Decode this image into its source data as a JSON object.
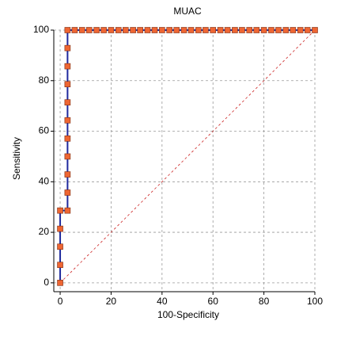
{
  "chart_data": {
    "type": "line",
    "title": "MUAC",
    "x_label": "100-Specificity",
    "y_label": "Sensitivity",
    "series": [
      {
        "name": "MUAC",
        "color": "#1f2a9e",
        "marker_color": "#ee6633",
        "x": [
          0,
          0,
          0,
          0,
          0,
          2.9,
          2.9,
          2.9,
          2.9,
          2.9,
          2.9,
          2.9,
          2.9,
          2.9,
          2.9,
          2.9,
          5.7,
          8.6,
          11.4,
          14.3,
          17.1,
          20,
          22.9,
          25.7,
          28.6,
          31.4,
          34.3,
          37.1,
          40,
          42.9,
          45.7,
          48.6,
          51.4,
          54.3,
          57.1,
          60,
          62.9,
          65.7,
          68.6,
          71.4,
          74.3,
          77.1,
          80,
          82.9,
          85.7,
          88.6,
          91.4,
          94.3,
          97.1,
          100
        ],
        "values": [
          0,
          7.1,
          14.3,
          21.4,
          28.6,
          28.6,
          35.7,
          42.9,
          50,
          57.1,
          64.3,
          71.4,
          78.6,
          85.7,
          92.9,
          100,
          100,
          100,
          100,
          100,
          100,
          100,
          100,
          100,
          100,
          100,
          100,
          100,
          100,
          100,
          100,
          100,
          100,
          100,
          100,
          100,
          100,
          100,
          100,
          100,
          100,
          100,
          100,
          100,
          100,
          100,
          100,
          100,
          100,
          100
        ]
      }
    ],
    "xlim": [
      -2.5,
      100
    ],
    "ylim": [
      -3.5,
      100
    ],
    "xticks": [
      0,
      20,
      40,
      60,
      80,
      100
    ],
    "yticks": [
      0,
      20,
      40,
      60,
      80,
      100
    ],
    "grid": true,
    "diagonal_color": "#cc2222"
  }
}
